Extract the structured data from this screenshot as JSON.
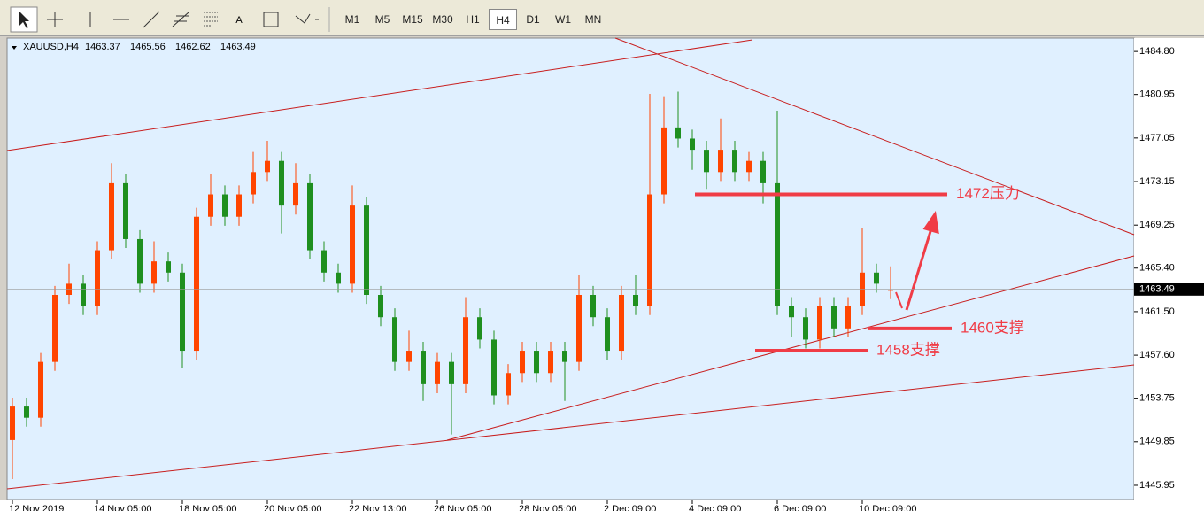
{
  "toolbar": {
    "text_icon": "A",
    "timeframes": [
      "M1",
      "M5",
      "M15",
      "M30",
      "H1",
      "H4",
      "D1",
      "W1",
      "MN"
    ],
    "active": "H4"
  },
  "chart_data": {
    "type": "candlestick",
    "title": "XAUUSD,H4",
    "categories": [
      "12 Nov 2019",
      null,
      null,
      null,
      null,
      null,
      "14 Nov 05:00",
      null,
      null,
      null,
      null,
      null,
      "18 Nov 05:00",
      null,
      null,
      null,
      null,
      null,
      "20 Nov 05:00",
      null,
      null,
      null,
      null,
      null,
      "22 Nov 13:00",
      null,
      null,
      null,
      null,
      null,
      "26 Nov 05:00",
      null,
      null,
      null,
      null,
      null,
      "28 Nov 05:00",
      null,
      null,
      null,
      null,
      null,
      "2 Dec 09:00",
      null,
      null,
      null,
      null,
      null,
      "4 Dec 09:00",
      null,
      null,
      null,
      null,
      null,
      "6 Dec 09:00",
      null,
      null,
      null,
      null,
      null,
      "10 Dec 09:00",
      null,
      null
    ],
    "open": [
      1450,
      1453,
      1452,
      1457,
      1463,
      1464,
      1462,
      1467,
      1473,
      1468,
      1464,
      1466,
      1465,
      1458,
      1470,
      1472,
      1470,
      1472,
      1474,
      1475,
      1471,
      1473,
      1467,
      1465,
      1464,
      1471,
      1463,
      1461,
      1457,
      1458,
      1455,
      1457,
      1455,
      1461,
      1459,
      1454,
      1456,
      1458,
      1456,
      1458,
      1457,
      1463,
      1461,
      1458,
      1463,
      1462,
      1472,
      1478,
      1477,
      1476,
      1474,
      1476,
      1474,
      1475,
      1473,
      1462,
      1461,
      1459,
      1462,
      1460,
      1462,
      1465,
      1463.37
    ],
    "high": [
      1453.8,
      1453.8,
      1457.8,
      1463.8,
      1465.8,
      1464.8,
      1467.8,
      1474.8,
      1473.8,
      1468.8,
      1467.8,
      1466.8,
      1465.8,
      1470.8,
      1473.8,
      1472.8,
      1472.8,
      1475.8,
      1476.8,
      1475.8,
      1474.8,
      1473.8,
      1467.8,
      1465.8,
      1472.8,
      1471.8,
      1463.8,
      1461.8,
      1459.8,
      1458.8,
      1457.8,
      1457.8,
      1462.8,
      1461.8,
      1459.8,
      1456.8,
      1458.8,
      1458.8,
      1458.8,
      1458.8,
      1464.8,
      1463.8,
      1461.8,
      1463.8,
      1464.8,
      1481,
      1480.8,
      1481.2,
      1477.8,
      1476.8,
      1478.8,
      1476.8,
      1475.8,
      1475.8,
      1479.5,
      1462.8,
      1461.8,
      1462.8,
      1462.8,
      1462.8,
      1469,
      1465.8,
      1465.56
    ],
    "low": [
      1446.5,
      1451.2,
      1451.2,
      1456.2,
      1462.2,
      1461.2,
      1461.2,
      1466.2,
      1467.2,
      1463.2,
      1463.2,
      1464.2,
      1456.5,
      1457.2,
      1469.2,
      1469.2,
      1469.2,
      1471.2,
      1473.2,
      1468.5,
      1470.2,
      1466.2,
      1464.2,
      1463.2,
      1463.2,
      1462.2,
      1460.2,
      1456.2,
      1456.2,
      1453.5,
      1454.2,
      1450.5,
      1454.2,
      1458.2,
      1453.2,
      1453.2,
      1455.2,
      1455.2,
      1455.2,
      1453.5,
      1456.2,
      1460.2,
      1457.2,
      1457.2,
      1461.2,
      1461.2,
      1471.2,
      1476.2,
      1474.2,
      1472.5,
      1473.2,
      1473.2,
      1473.2,
      1471.2,
      1461.2,
      1459.2,
      1458.2,
      1458.2,
      1459.2,
      1459.2,
      1461.2,
      1463.2,
      1462.62
    ],
    "close": [
      1453,
      1452,
      1457,
      1463,
      1464,
      1462,
      1467,
      1473,
      1468,
      1464,
      1466,
      1465,
      1458,
      1470,
      1472,
      1470,
      1472,
      1474,
      1475,
      1471,
      1473,
      1467,
      1465,
      1464,
      1471,
      1463,
      1461,
      1457,
      1458,
      1455,
      1457,
      1455,
      1461,
      1459,
      1454,
      1456,
      1458,
      1456,
      1458,
      1457,
      1463,
      1461,
      1458,
      1463,
      1462,
      1472,
      1478,
      1477,
      1476,
      1474,
      1476,
      1474,
      1475,
      1473,
      1462,
      1461,
      1459,
      1462,
      1460,
      1462,
      1465,
      1464,
      1463.49
    ],
    "up_color": "#ff4500",
    "down_color": "#1f8f1f",
    "ylim": [
      1444.6,
      1486.0
    ],
    "yticks": [
      {
        "value": 1484.8,
        "label": "1484.80"
      },
      1480.95,
      1477.05,
      1473.15,
      1469.25,
      {
        "value": 1465.4,
        "label": "1465.40"
      },
      {
        "value": 1461.5,
        "label": "1461.50"
      },
      {
        "value": 1457.6,
        "label": "1457.60"
      },
      1453.75,
      1449.85,
      1445.95
    ],
    "grid": false,
    "annotations": [
      {
        "text": "1472压力",
        "value": 1472
      },
      {
        "text": "1460支撑",
        "value": 1460
      },
      {
        "text": "1458支撑",
        "value": 1458
      }
    ]
  }
}
